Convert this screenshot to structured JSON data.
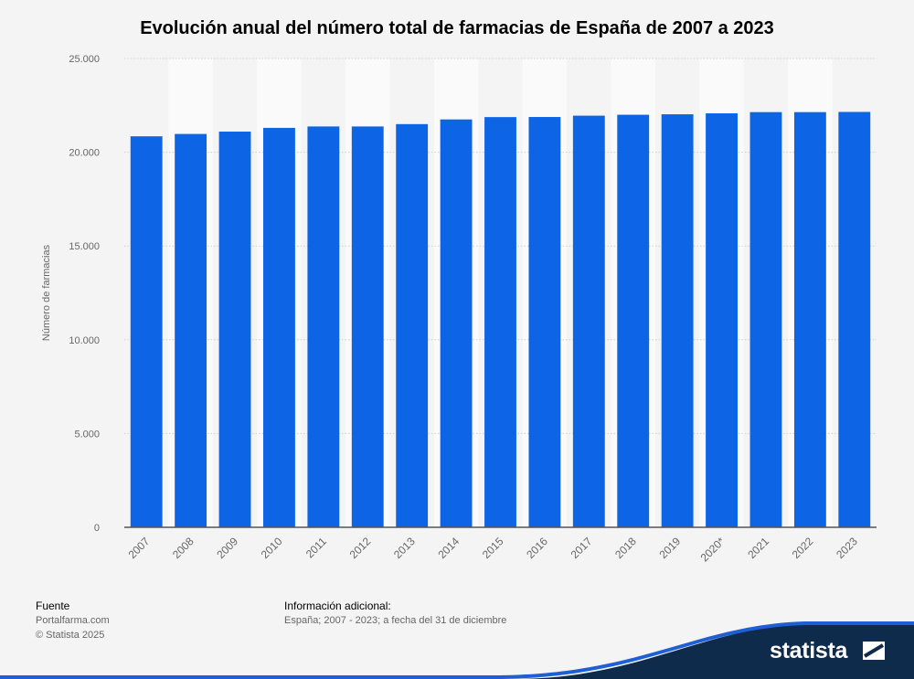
{
  "chart_data": {
    "type": "bar",
    "title": "Evolución anual del número total de farmacias de España de 2007 a 2023",
    "ylabel": "Número de farmacias",
    "xlabel": "",
    "categories": [
      "2007",
      "2008",
      "2009",
      "2010",
      "2011",
      "2012",
      "2013",
      "2014",
      "2015",
      "2016",
      "2017",
      "2018",
      "2019",
      "2020*",
      "2021",
      "2022",
      "2023"
    ],
    "values": [
      20850,
      20975,
      21100,
      21300,
      21375,
      21375,
      21500,
      21750,
      21875,
      21880,
      21950,
      22000,
      22025,
      22075,
      22140,
      22140,
      22150
    ],
    "ylim": [
      0,
      25000
    ],
    "yticks": [
      0,
      5000,
      10000,
      15000,
      20000,
      25000
    ],
    "ytick_labels": [
      "0",
      "5.000",
      "10.000",
      "15.000",
      "20.000",
      "25.000"
    ],
    "grid": true,
    "bar_color": "#0d65e6"
  },
  "footer": {
    "source_heading": "Fuente",
    "source_line1": "Portalfarma.com",
    "source_line2": "© Statista 2025",
    "info_heading": "Información adicional:",
    "info_text": "España; 2007 - 2023; a fecha del 31 de diciembre"
  },
  "brand": {
    "name": "statista"
  }
}
